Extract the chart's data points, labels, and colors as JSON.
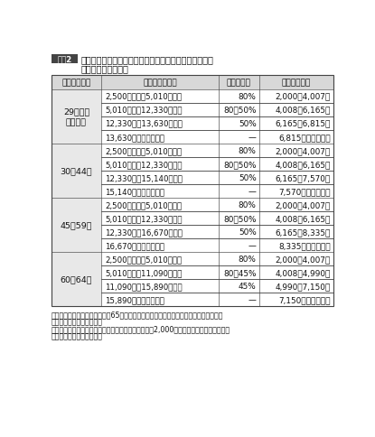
{
  "title_box_label": "図表2",
  "title_line1": "令和元年８月１日以降の離職時年齢の賃金日額に応じた",
  "title_line2": "基本手当日額の水準",
  "header": [
    "離職時の年齢",
    "賃　金　日　額",
    "給　付　率",
    "基本手当日額"
  ],
  "age_groups": [
    {
      "label": "29歳以下\n〔注１〕",
      "rows": [
        [
          "2,500円以上　5,010円未満",
          "80%",
          "2,000～4,007円"
        ],
        [
          "5,010　〃　12,330円以下",
          "80～50%",
          "4,008～6,165円"
        ],
        [
          "12,330円超13,630円以下",
          "50%",
          "6,165～6,815円"
        ],
        [
          "13,630円（上限額）超",
          "—",
          "6,815円（上限額）"
        ]
      ]
    },
    {
      "label": "30～44歳",
      "rows": [
        [
          "2,500円以上　5,010円未満",
          "80%",
          "2,000～4,007円"
        ],
        [
          "5,010　〃　12,330円以下",
          "80～50%",
          "4,008～6,165円"
        ],
        [
          "12,330円超15,140円以下",
          "50%",
          "6,165～7,570円"
        ],
        [
          "15,140円（上限額）超",
          "—",
          "7,570円（上限額）"
        ]
      ]
    },
    {
      "label": "45～59歳",
      "rows": [
        [
          "2,500円以上　5,010円未満",
          "80%",
          "2,000～4,007円"
        ],
        [
          "5,010　〃　12,330円以下",
          "80～50%",
          "4,008～6,165円"
        ],
        [
          "12,330円超16,670円以下",
          "50%",
          "6,165～8,335円"
        ],
        [
          "16,670円（上限額）超",
          "—",
          "8,335円（上限額）"
        ]
      ]
    },
    {
      "label": "60～64歳",
      "rows": [
        [
          "2,500円以上　5,010円未満",
          "80%",
          "2,000～4,007円"
        ],
        [
          "5,010　〃　11,090円以下",
          "80～45%",
          "4,008～4,990円"
        ],
        [
          "11,090円超15,890円以下",
          "45%",
          "4,990～7,150円"
        ],
        [
          "15,890円（上限額）超",
          "—",
          "7,150円（上限額）"
        ]
      ]
    }
  ],
  "note_lines": [
    "〔注〕　１．　離職時の年齢が65歳以上で、高年齢求職者給付金を受給する場合もこの",
    "　　　　　　区分を適用。",
    "　　　２．　下限額は離職時の年齢に関係なく一律（2,000円）、上限額は年齢区分に応",
    "　　　　　　じて異なる。"
  ],
  "header_bg": "#d8d8d8",
  "age_col_bg": "#e8e8e8",
  "border_color": "#444444",
  "text_color": "#111111",
  "title_box_bg": "#444444",
  "title_box_text": "#ffffff",
  "bg_color": "#ffffff"
}
